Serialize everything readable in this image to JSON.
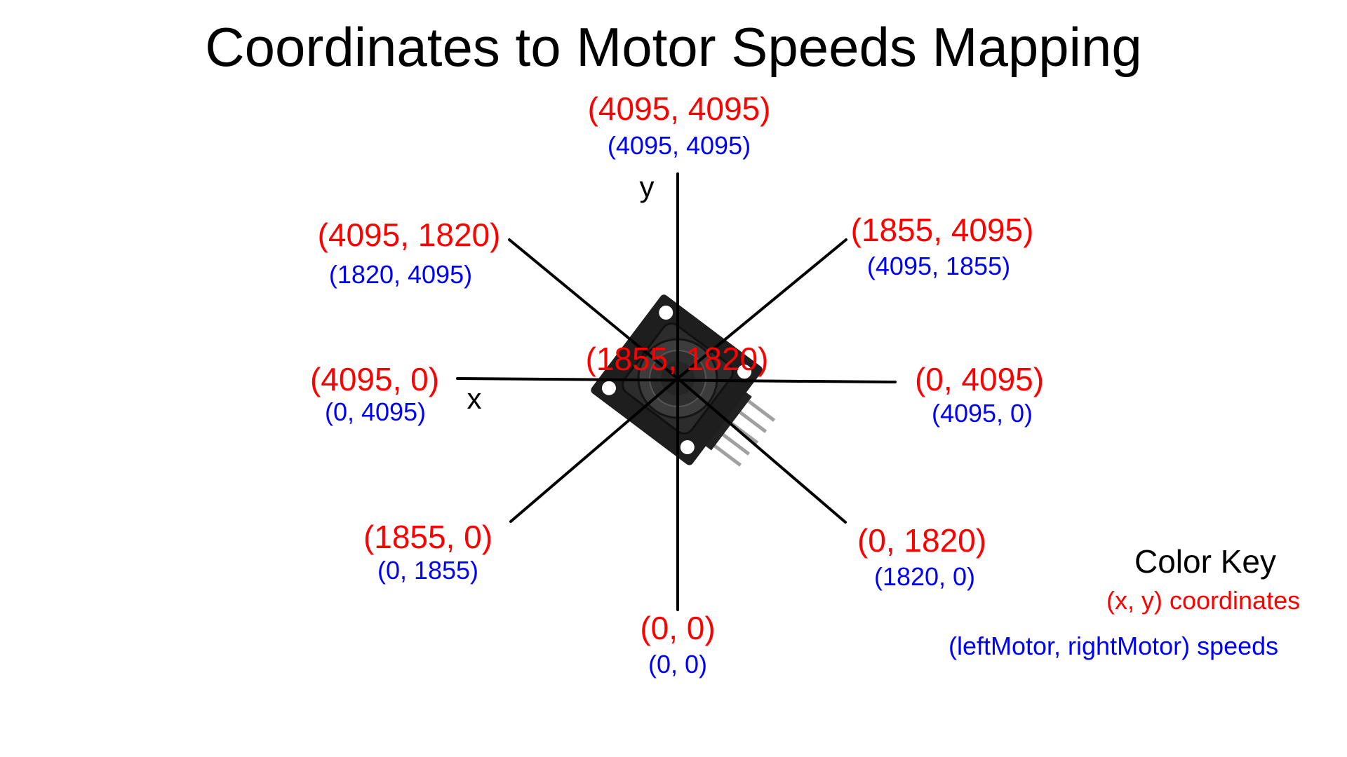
{
  "title": "Coordinates to Motor Speeds Mapping",
  "axes": {
    "x_label": "x",
    "y_label": "y"
  },
  "points": {
    "top": {
      "coord": "(4095, 4095)",
      "speed": "(4095, 4095)"
    },
    "top_left": {
      "coord": "(4095, 1820)",
      "speed": "(1820, 4095)"
    },
    "top_right": {
      "coord": "(1855, 4095)",
      "speed": "(4095, 1855)"
    },
    "left": {
      "coord": "(4095, 0)",
      "speed": "(0, 4095)"
    },
    "center": {
      "coord": "(1855, 1820)"
    },
    "right": {
      "coord": "(0, 4095)",
      "speed": "(4095, 0)"
    },
    "bottom_left": {
      "coord": "(1855, 0)",
      "speed": "(0, 1855)"
    },
    "bottom_right": {
      "coord": "(0, 1820)",
      "speed": "(1820, 0)"
    },
    "bottom": {
      "coord": "(0, 0)",
      "speed": "(0, 0)"
    }
  },
  "color_key": {
    "title": "Color Key",
    "coord_label": "(x, y) coordinates",
    "speed_label": "(leftMotor, rightMotor) speeds"
  },
  "colors": {
    "coord": "#ff0000",
    "speed": "#0000ff",
    "lines": "#000000"
  }
}
